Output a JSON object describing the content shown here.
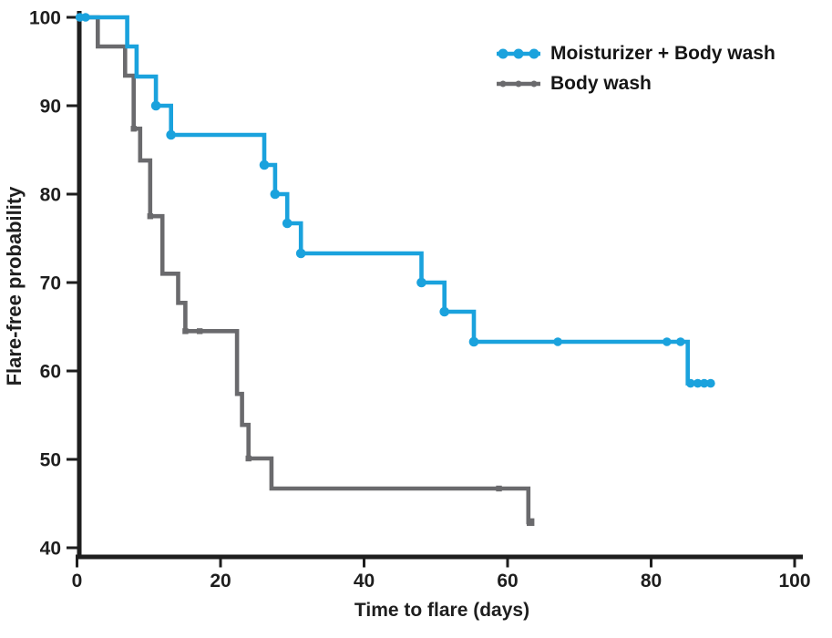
{
  "chart_data": {
    "type": "line",
    "subtype": "kaplan_meier_step",
    "title": "",
    "xlabel": "Time to flare (days)",
    "ylabel": "Flare-free probability",
    "xlim": [
      0,
      100
    ],
    "ylim": [
      40,
      100
    ],
    "x_ticks": [
      0,
      20,
      40,
      60,
      80,
      100
    ],
    "y_ticks": [
      100,
      90,
      80,
      70,
      60,
      50,
      40
    ],
    "grid": false,
    "legend_position": "top-right",
    "axis_color": "#1e1e1e",
    "series": [
      {
        "name": "Moisturizer + Body wash",
        "color": "#1aa2dd",
        "marker": "circle",
        "steps": [
          [
            0,
            100
          ],
          [
            7,
            96.7
          ],
          [
            8.3,
            93.3
          ],
          [
            11,
            90
          ],
          [
            13.1,
            86.7
          ],
          [
            26.1,
            83.3
          ],
          [
            27.6,
            80
          ],
          [
            29.3,
            76.7
          ],
          [
            31.2,
            73.3
          ],
          [
            48,
            70
          ],
          [
            51.2,
            66.7
          ],
          [
            55.3,
            63.3
          ],
          [
            85.1,
            58.6
          ]
        ],
        "end_day": 88.7,
        "event_markers": [
          [
            11,
            90
          ],
          [
            13.1,
            86.7
          ],
          [
            26.1,
            83.3
          ],
          [
            27.6,
            80
          ],
          [
            29.3,
            76.7
          ],
          [
            31.2,
            73.3
          ],
          [
            48,
            70
          ],
          [
            51.2,
            66.7
          ],
          [
            55.3,
            63.3
          ]
        ],
        "censor_markers": [
          [
            0.4,
            100
          ],
          [
            1.2,
            100
          ],
          [
            67,
            63.3
          ],
          [
            82.2,
            63.3
          ],
          [
            84.1,
            63.3
          ],
          [
            85.5,
            58.6
          ],
          [
            86.5,
            58.6
          ],
          [
            87.4,
            58.6
          ],
          [
            88.3,
            58.6
          ]
        ]
      },
      {
        "name": "Body wash",
        "color": "#6a6a6d",
        "marker": "square",
        "steps": [
          [
            0,
            100
          ],
          [
            2.9,
            96.7
          ],
          [
            6.7,
            93.4
          ],
          [
            7.9,
            87.4
          ],
          [
            8.8,
            83.8
          ],
          [
            10.2,
            77.5
          ],
          [
            11.9,
            71
          ],
          [
            14.1,
            67.7
          ],
          [
            15.1,
            64.5
          ],
          [
            22.3,
            57.4
          ],
          [
            23,
            53.9
          ],
          [
            23.9,
            50.1
          ],
          [
            27.1,
            46.7
          ],
          [
            62.9,
            42.9
          ]
        ],
        "end_day": 63.2,
        "event_markers": [
          [
            7.9,
            87.4
          ],
          [
            10.2,
            77.5
          ],
          [
            15.1,
            64.5
          ],
          [
            23.9,
            50.1
          ]
        ],
        "censor_markers": [
          [
            17.1,
            64.5
          ],
          [
            58.8,
            46.7
          ]
        ],
        "end_marker": [
          63.2,
          42.9
        ]
      }
    ]
  }
}
